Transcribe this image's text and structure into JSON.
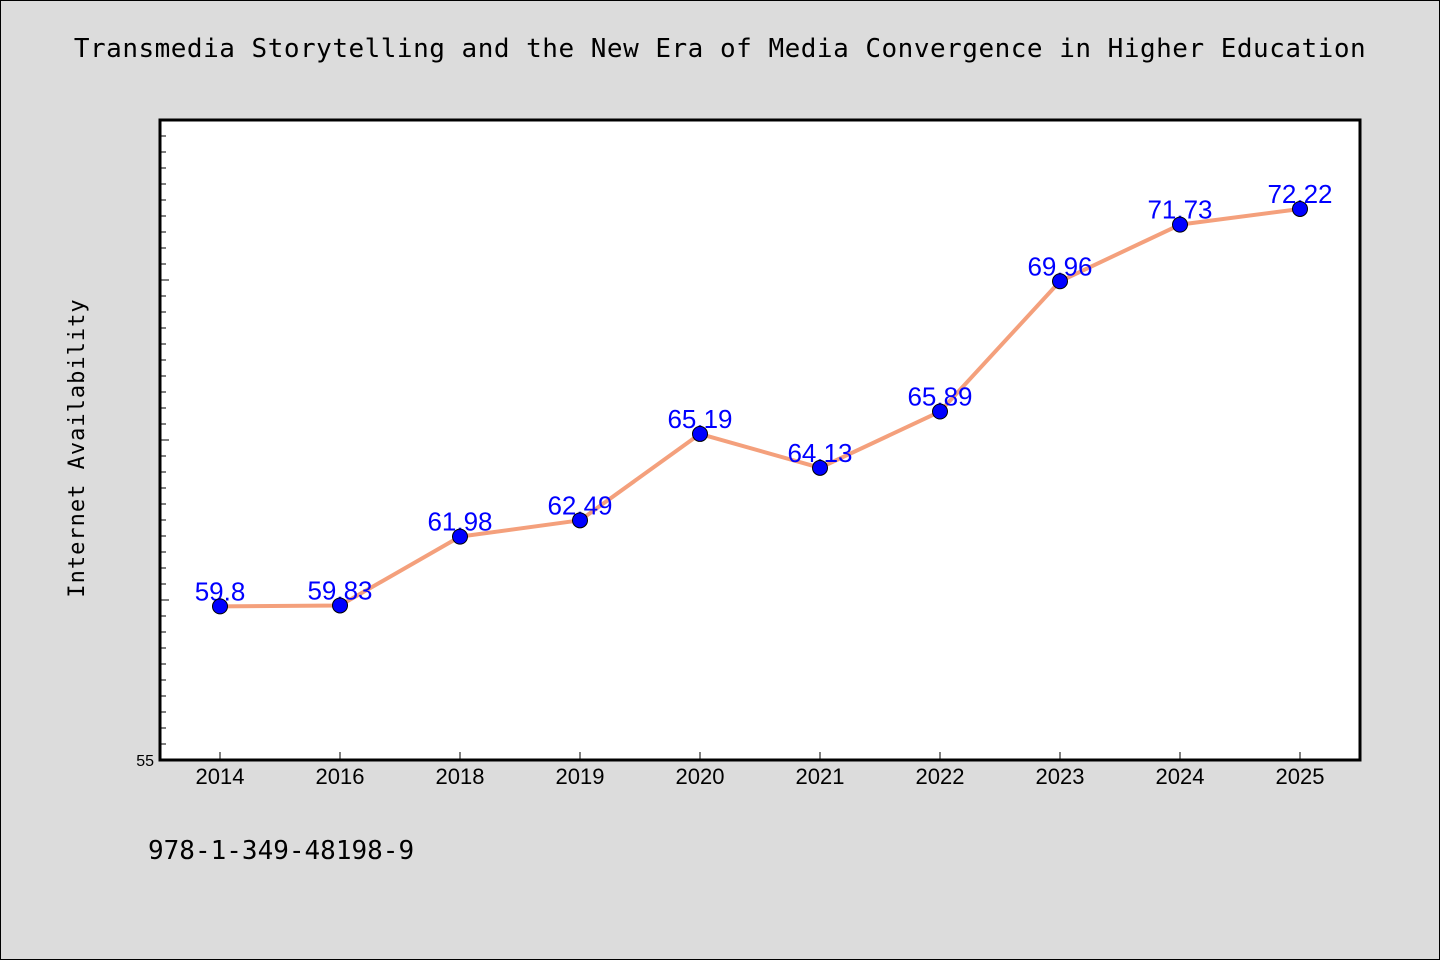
{
  "chart_data": {
    "type": "line",
    "title": "Transmedia Storytelling and the New Era of Media Convergence in Higher Education",
    "ylabel": "Internet Availability",
    "xlabel": "",
    "categories": [
      "2014",
      "2016",
      "2018",
      "2019",
      "2020",
      "2021",
      "2022",
      "2023",
      "2024",
      "2025"
    ],
    "series": [
      {
        "values": [
          59.8,
          59.83,
          61.98,
          62.49,
          65.19,
          64.13,
          65.89,
          69.96,
          71.73,
          72.22
        ],
        "labels": [
          "59.8",
          "59.83",
          "61.98",
          "62.49",
          "65.19",
          "64.13",
          "65.89",
          "69.96",
          "71.73",
          "72.22"
        ]
      }
    ],
    "ylim": [
      55,
      75
    ],
    "ytick_labels": [
      "55"
    ],
    "grid": false,
    "legend": "none",
    "colors": {
      "line": "#f4a07c",
      "marker": "#0000ff",
      "label": "#0000ff",
      "background": "#dcdcdc",
      "plot_background": "#ffffff"
    }
  },
  "footer": {
    "isbn": "978-1-349-48198-9"
  }
}
